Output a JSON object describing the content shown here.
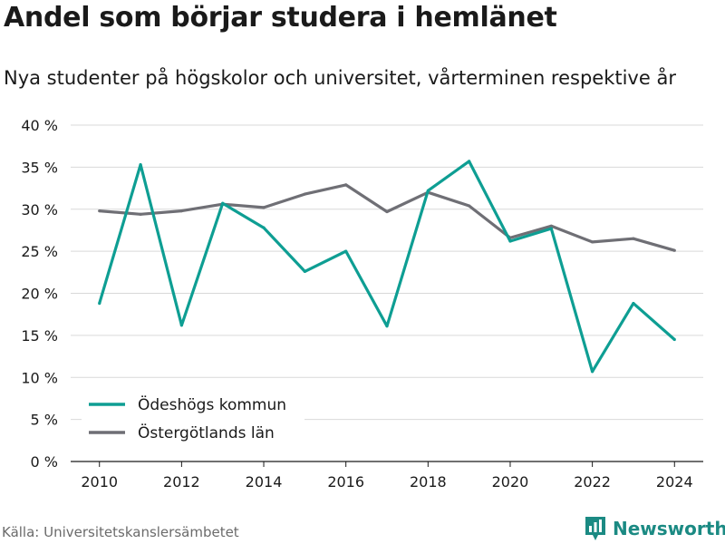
{
  "title": "Andel som börjar studera i hemlänet",
  "subtitle": "Nya studenter på högskolor och universitet, vårterminen respektive år",
  "source": "Källa: Universitetskanslersämbetet",
  "brand": {
    "name": "Newsworthy",
    "icon": "newsworthy-logo-icon",
    "color": "#1b8a83"
  },
  "chart_data": {
    "type": "line",
    "title": "Andel som börjar studera i hemlänet",
    "subtitle": "Nya studenter på högskolor och universitet, vårterminen respektive år",
    "x": [
      2010,
      2011,
      2012,
      2013,
      2014,
      2015,
      2016,
      2017,
      2018,
      2019,
      2020,
      2021,
      2022,
      2023,
      2024
    ],
    "xticks": [
      "2010",
      "2012",
      "2014",
      "2016",
      "2018",
      "2020",
      "2022",
      "2024"
    ],
    "xlim": [
      2009.3,
      2024.7
    ],
    "yticks": [
      "0 %",
      "5 %",
      "10 %",
      "15 %",
      "20 %",
      "25 %",
      "30 %",
      "35 %",
      "40 %"
    ],
    "ylim": [
      0,
      40
    ],
    "grid": true,
    "legend_position": "bottom-left",
    "series": [
      {
        "name": "Ödeshögs kommun",
        "color": "#0e9e93",
        "values": [
          18.8,
          35.3,
          16.2,
          30.7,
          27.8,
          22.6,
          25.0,
          16.1,
          32.2,
          35.7,
          26.2,
          27.7,
          10.7,
          18.8,
          14.5
        ]
      },
      {
        "name": "Östergötlands län",
        "color": "#6f6f75",
        "values": [
          29.8,
          29.4,
          29.8,
          30.6,
          30.2,
          31.8,
          32.9,
          29.7,
          32.0,
          30.4,
          26.6,
          28.0,
          26.1,
          26.5,
          25.1
        ]
      }
    ]
  }
}
